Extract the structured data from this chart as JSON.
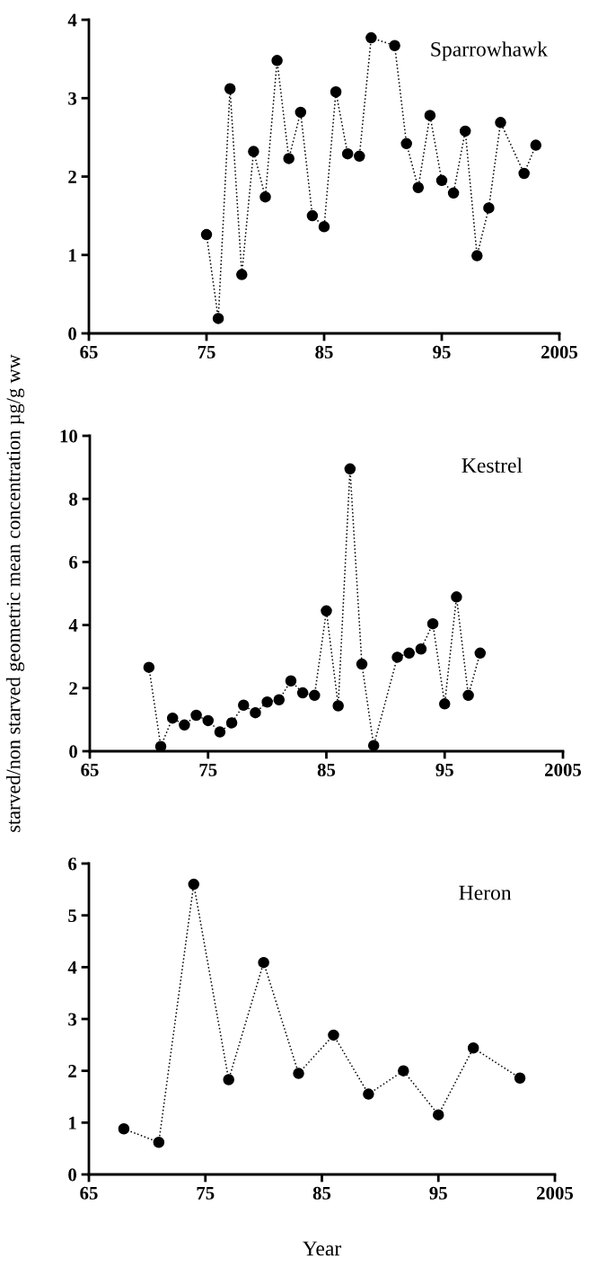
{
  "chart_data": [
    {
      "type": "line",
      "title": "Sparrowhawk",
      "marker": "circle",
      "line_style": "dotted",
      "grid": false,
      "legend": false,
      "x": [
        1975,
        1976,
        1977,
        1978,
        1979,
        1980,
        1981,
        1982,
        1983,
        1984,
        1985,
        1986,
        1987,
        1988,
        1989,
        1991,
        1992,
        1993,
        1994,
        1995,
        1996,
        1997,
        1998,
        1999,
        2000,
        2002,
        2003
      ],
      "series": [
        {
          "color": "#000000",
          "values": [
            1.26,
            0.19,
            3.12,
            0.75,
            2.32,
            1.74,
            3.48,
            2.23,
            2.82,
            1.5,
            1.36,
            3.08,
            2.29,
            2.26,
            3.77,
            3.67,
            2.42,
            1.86,
            2.78,
            1.95,
            1.79,
            2.58,
            0.99,
            1.6,
            2.69,
            2.04,
            2.4
          ]
        }
      ],
      "xlim": [
        1965,
        2005
      ],
      "xticks": [
        {
          "value": 1965,
          "label": "65"
        },
        {
          "value": 1975,
          "label": "75"
        },
        {
          "value": 1985,
          "label": "85"
        },
        {
          "value": 1995,
          "label": "95"
        },
        {
          "value": 2005,
          "label": "2005"
        }
      ],
      "ylim": [
        0,
        4
      ],
      "yticks": [
        0,
        1,
        2,
        3,
        4
      ]
    },
    {
      "type": "line",
      "title": "Kestrel",
      "ylabel": "starved/non starved geometric mean concentration µg/g ww",
      "marker": "circle",
      "line_style": "dotted",
      "grid": false,
      "legend": false,
      "x": [
        1970,
        1971,
        1972,
        1973,
        1974,
        1975,
        1976,
        1977,
        1978,
        1979,
        1980,
        1981,
        1982,
        1983,
        1984,
        1985,
        1986,
        1987,
        1988,
        1989,
        1991,
        1992,
        1993,
        1994,
        1995,
        1996,
        1997,
        1998
      ],
      "series": [
        {
          "color": "#000000",
          "values": [
            2.66,
            0.15,
            1.05,
            0.83,
            1.14,
            0.97,
            0.61,
            0.9,
            1.46,
            1.22,
            1.56,
            1.63,
            2.23,
            1.85,
            1.77,
            4.45,
            1.44,
            8.95,
            2.76,
            0.18,
            2.98,
            3.11,
            3.24,
            4.04,
            1.5,
            4.89,
            1.77,
            3.11
          ]
        }
      ],
      "xlim": [
        1965,
        2005
      ],
      "xticks": [
        {
          "value": 1965,
          "label": "65"
        },
        {
          "value": 1975,
          "label": "75"
        },
        {
          "value": 1985,
          "label": "85"
        },
        {
          "value": 1995,
          "label": "95"
        },
        {
          "value": 2005,
          "label": "2005"
        }
      ],
      "ylim": [
        0,
        10
      ],
      "yticks": [
        0,
        2,
        4,
        6,
        8,
        10
      ]
    },
    {
      "type": "line",
      "title": "Heron",
      "xlabel": "Year",
      "marker": "circle",
      "line_style": "dotted",
      "grid": false,
      "legend": false,
      "x": [
        1968,
        1971,
        1974,
        1977,
        1980,
        1983,
        1986,
        1989,
        1992,
        1995,
        1998,
        2002
      ],
      "series": [
        {
          "color": "#000000",
          "values": [
            0.88,
            0.62,
            5.6,
            1.83,
            4.09,
            1.95,
            2.69,
            1.55,
            2.0,
            1.15,
            2.44,
            1.86
          ]
        }
      ],
      "xlim": [
        1965,
        2005
      ],
      "xticks": [
        {
          "value": 1965,
          "label": "65"
        },
        {
          "value": 1975,
          "label": "75"
        },
        {
          "value": 1985,
          "label": "85"
        },
        {
          "value": 1995,
          "label": "95"
        },
        {
          "value": 2005,
          "label": "2005"
        }
      ],
      "ylim": [
        0,
        6
      ],
      "yticks": [
        0,
        1,
        2,
        3,
        4,
        5,
        6
      ]
    }
  ]
}
